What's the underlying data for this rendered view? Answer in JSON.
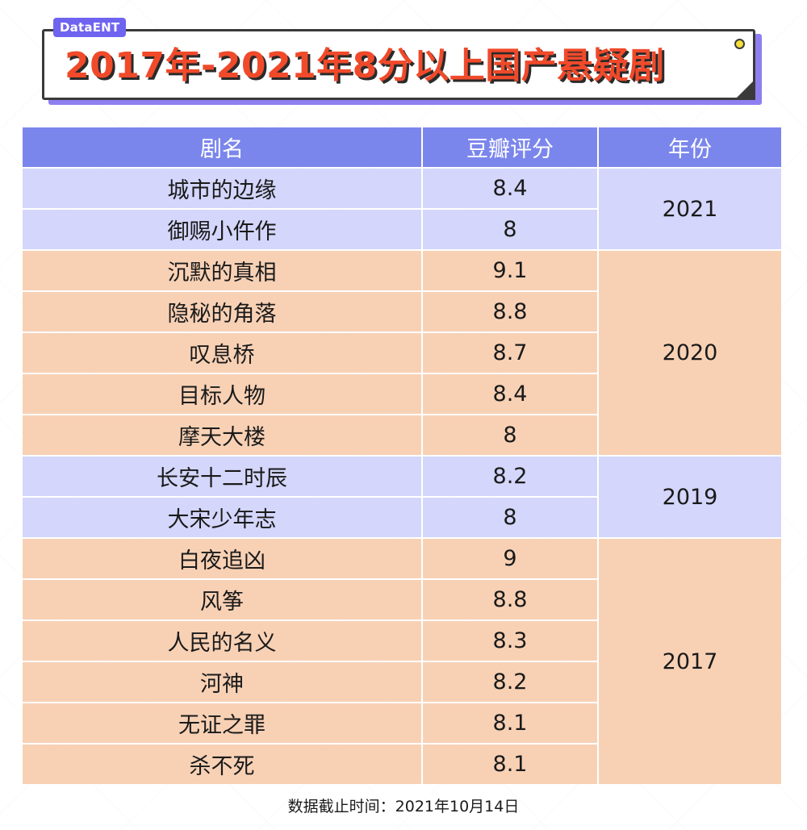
{
  "header": {
    "tag": "DataENT",
    "title": "2017年-2021年8分以上国产悬疑剧"
  },
  "colors": {
    "title": "#f04a2a",
    "header_row": "#7b86ec",
    "group_blue": "#d4d6fb",
    "group_orange": "#f8d1b5",
    "accent_shadow": "#8e7ff0"
  },
  "chart_data": {
    "type": "table",
    "columns": [
      "剧名",
      "豆瓣评分",
      "年份"
    ],
    "groups": [
      {
        "year": "2021",
        "color": "blue",
        "rows": [
          {
            "name": "城市的边缘",
            "score": "8.4"
          },
          {
            "name": "御赐小仵作",
            "score": "8"
          }
        ]
      },
      {
        "year": "2020",
        "color": "orange",
        "rows": [
          {
            "name": "沉默的真相",
            "score": "9.1"
          },
          {
            "name": "隐秘的角落",
            "score": "8.8"
          },
          {
            "name": "叹息桥",
            "score": "8.7"
          },
          {
            "name": "目标人物",
            "score": "8.4"
          },
          {
            "name": "摩天大楼",
            "score": "8"
          }
        ]
      },
      {
        "year": "2019",
        "color": "blue",
        "rows": [
          {
            "name": "长安十二时辰",
            "score": "8.2"
          },
          {
            "name": "大宋少年志",
            "score": "8"
          }
        ]
      },
      {
        "year": "2017",
        "color": "orange",
        "rows": [
          {
            "name": "白夜追凶",
            "score": "9"
          },
          {
            "name": "风筝",
            "score": "8.8"
          },
          {
            "name": "人民的名义",
            "score": "8.3"
          },
          {
            "name": "河神",
            "score": "8.2"
          },
          {
            "name": "无证之罪",
            "score": "8.1"
          },
          {
            "name": "杀不死",
            "score": "8.1"
          }
        ]
      }
    ]
  },
  "footer": {
    "note": "数据截止时间：2021年10月14日"
  }
}
